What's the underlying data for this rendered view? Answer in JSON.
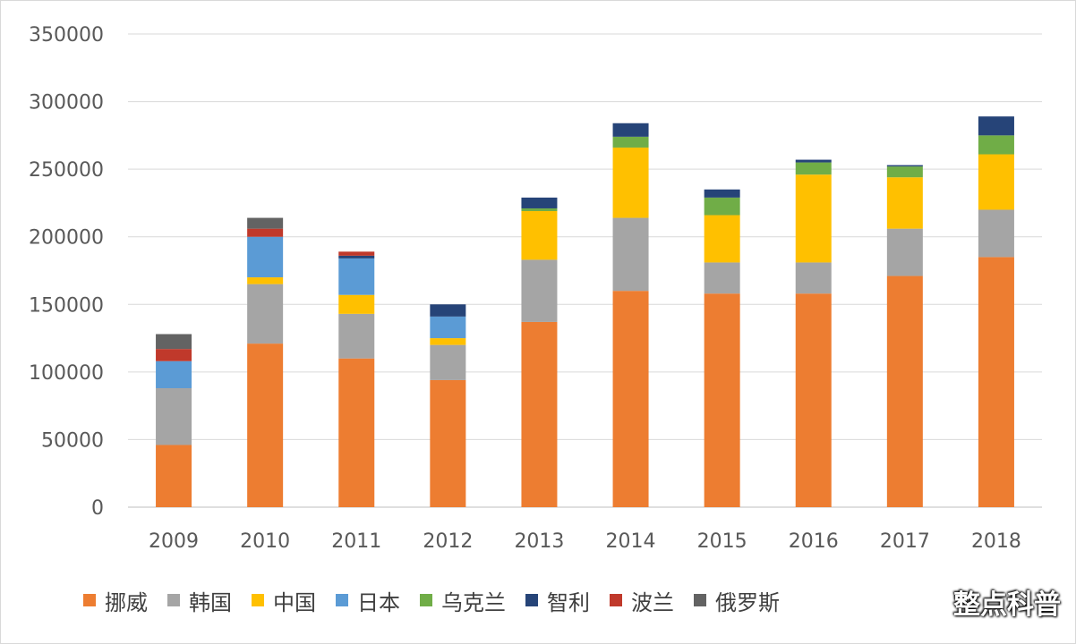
{
  "chart_data": {
    "type": "bar",
    "stacked": true,
    "categories": [
      "2009",
      "2010",
      "2011",
      "2012",
      "2013",
      "2014",
      "2015",
      "2016",
      "2017",
      "2018"
    ],
    "ylim": [
      0,
      350000
    ],
    "yticks": [
      0,
      50000,
      100000,
      150000,
      200000,
      250000,
      300000,
      350000
    ],
    "grid": true,
    "legend_position": "bottom",
    "series": [
      {
        "name": "挪威",
        "color": "#ED7D31",
        "values": [
          46000,
          121000,
          110000,
          94000,
          137000,
          160000,
          158000,
          158000,
          171000,
          185000
        ]
      },
      {
        "name": "韩国",
        "color": "#A5A5A5",
        "values": [
          42000,
          44000,
          33000,
          26000,
          46000,
          54000,
          23000,
          23000,
          35000,
          35000
        ]
      },
      {
        "name": "中国",
        "color": "#FFC000",
        "values": [
          0,
          5000,
          14000,
          5000,
          36000,
          52000,
          35000,
          65000,
          38000,
          41000
        ]
      },
      {
        "name": "日本",
        "color": "#5B9BD5",
        "values": [
          20000,
          30000,
          27000,
          16000,
          0,
          0,
          0,
          0,
          0,
          0
        ]
      },
      {
        "name": "乌克兰",
        "color": "#70AD47",
        "values": [
          0,
          0,
          0,
          0,
          2000,
          8000,
          13000,
          9000,
          8000,
          14000
        ]
      },
      {
        "name": "智利",
        "color": "#264478",
        "values": [
          0,
          0,
          2000,
          9000,
          8000,
          10000,
          6000,
          2000,
          1000,
          14000
        ]
      },
      {
        "name": "波兰",
        "color": "#C0392B",
        "values": [
          9000,
          6000,
          3000,
          0,
          0,
          0,
          0,
          0,
          0,
          0
        ]
      },
      {
        "name": "俄罗斯",
        "color": "#636363",
        "values": [
          11000,
          8000,
          0,
          0,
          0,
          0,
          0,
          0,
          0,
          0
        ]
      }
    ]
  },
  "watermark": "整点科普"
}
